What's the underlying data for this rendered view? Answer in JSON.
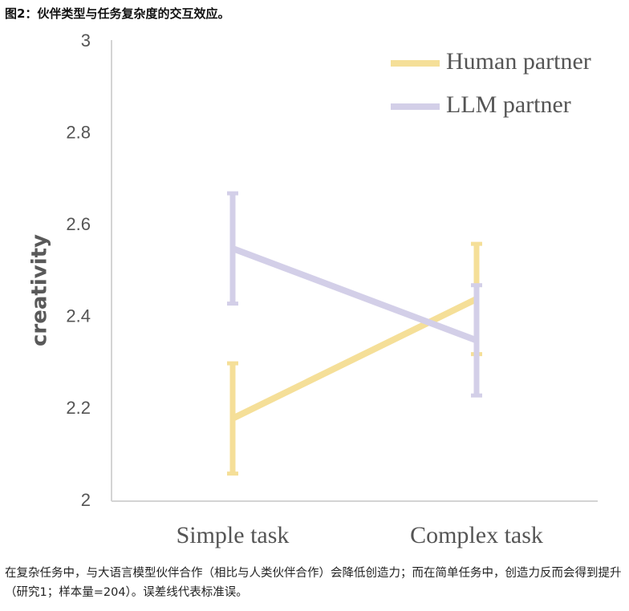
{
  "figure": {
    "title": "图2：伙伴类型与任务复杂度的交互效应。",
    "caption": "在复杂任务中，与大语言模型伙伴合作（相比与人类伙伴合作）会降低创造力；而在简单任务中，创造力反而会得到提升（研究1；样本量=204）。误差线代表标准误。"
  },
  "chart_data": {
    "type": "line",
    "title": "",
    "xlabel": "",
    "ylabel": "creativity",
    "categories": [
      "Simple task",
      "Complex task"
    ],
    "ylim": [
      2,
      3
    ],
    "yticks": [
      2,
      2.2,
      2.4,
      2.6,
      2.8,
      3
    ],
    "ytick_labels": [
      "2",
      "2.2",
      "2.4",
      "2.6",
      "2.8",
      "3"
    ],
    "grid": false,
    "legend_position": "top-right",
    "error_bars": "standard error",
    "series": [
      {
        "name": "Human partner",
        "color": "#f5df98",
        "values": [
          2.18,
          2.44
        ],
        "err_low": [
          2.06,
          2.32
        ],
        "err_high": [
          2.3,
          2.56
        ]
      },
      {
        "name": "LLM partner",
        "color": "#d3cfe8",
        "values": [
          2.55,
          2.35
        ],
        "err_low": [
          2.43,
          2.23
        ],
        "err_high": [
          2.67,
          2.47
        ]
      }
    ]
  }
}
